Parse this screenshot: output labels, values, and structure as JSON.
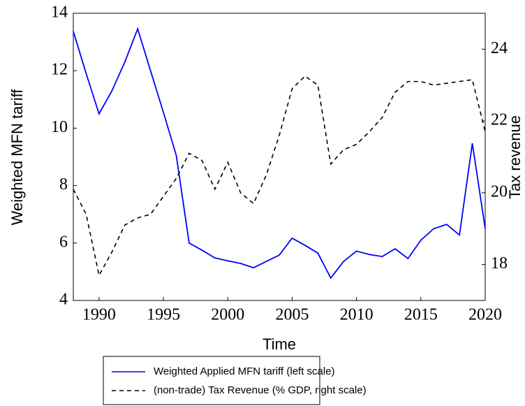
{
  "chart_data": {
    "type": "line",
    "x_label": "Time",
    "y_label": "Weighted MFN tariff",
    "y2_label": "Tax revenue",
    "x": [
      1988,
      1989,
      1990,
      1991,
      1992,
      1993,
      1994,
      1995,
      1996,
      1997,
      1998,
      1999,
      2000,
      2001,
      2002,
      2003,
      2004,
      2005,
      2006,
      2007,
      2008,
      2009,
      2010,
      2011,
      2012,
      2013,
      2014,
      2015,
      2016,
      2017,
      2018,
      2019,
      2020
    ],
    "series": [
      {
        "name": "Weighted Applied MFN tariff (left scale)",
        "color": "#0000ff",
        "dash": false,
        "values": [
          13.37,
          11.9,
          10.5,
          11.3,
          12.3,
          13.46,
          12.0,
          10.55,
          9.05,
          6.0,
          5.75,
          5.48,
          5.38,
          5.29,
          5.14,
          5.36,
          5.58,
          6.17,
          5.92,
          5.65,
          4.78,
          5.36,
          5.72,
          5.6,
          5.53,
          5.8,
          5.46,
          6.1,
          6.5,
          6.65,
          6.28,
          9.47,
          6.5
        ]
      },
      {
        "name": "(non-trade) Tax Revenue (% GDP, right scale)",
        "color": "#000000",
        "dash": true,
        "axis": "y2",
        "values": [
          20.1,
          19.4,
          17.7,
          18.35,
          19.1,
          19.3,
          19.4,
          19.9,
          20.4,
          21.1,
          20.9,
          20.1,
          20.85,
          20.0,
          19.7,
          20.5,
          21.6,
          22.9,
          23.25,
          23.0,
          20.8,
          21.2,
          21.35,
          21.7,
          22.1,
          22.8,
          23.1,
          23.1,
          23.0,
          23.05,
          23.1,
          23.15,
          21.7
        ]
      }
    ],
    "xlim": [
      1988,
      2020
    ],
    "xticks": [
      1990,
      1995,
      2000,
      2005,
      2010,
      2015,
      2020
    ],
    "ylim": [
      4,
      14
    ],
    "yticks": [
      4,
      6,
      8,
      10,
      12,
      14
    ],
    "y2lim": [
      17,
      25
    ],
    "y2ticks": [
      18,
      20,
      22,
      24
    ]
  }
}
